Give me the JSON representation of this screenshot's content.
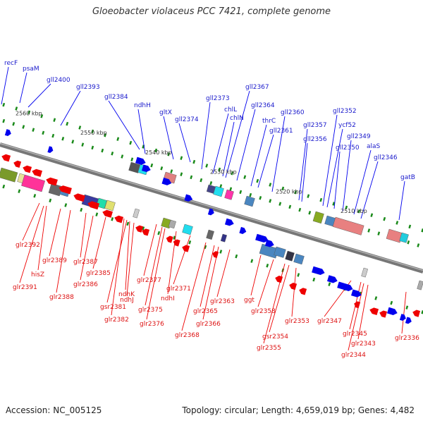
{
  "title": "Gloeobacter violaceus PCC 7421, complete genome",
  "footer": {
    "accession": "Accession: NC_005125",
    "topology": "Topology: circular; Length: 4,659,019 bp; Genes: 4,482"
  },
  "colors": {
    "forward": "#0000ee",
    "reverse": "#ee0000",
    "backbone": "#777777",
    "tick_dots": "#1a8a1a"
  },
  "scale_ticks": [
    "2560 kbp",
    "2550 kbp",
    "2540 kbp",
    "2530 kbp",
    "2520 kbp",
    "2510 kbp"
  ],
  "forward_labels": [
    "recF",
    "psaM",
    "gll2400",
    "gll2393",
    "gll2384",
    "ndhH",
    "gltX",
    "gll2374",
    "gll2373",
    "chlL",
    "chlN",
    "gll2367",
    "gll2364",
    "thrC",
    "gll2361",
    "gll2360",
    "gll2357",
    "gll2356",
    "gll2352",
    "ycf52",
    "gll2350",
    "gll2349",
    "alaS",
    "gll2346",
    "gatB"
  ],
  "reverse_labels": [
    "glr2392",
    "hisZ",
    "glr2391",
    "glr2389",
    "glr2388",
    "glr2387",
    "glr2386",
    "glr2385",
    "gsr2381",
    "ndhJ",
    "ndhK",
    "glr2382",
    "glr2377",
    "glr2375",
    "glr2376",
    "ndhI",
    "glr2371",
    "glr2368",
    "glr2366",
    "glr2365",
    "glr2363",
    "ggt",
    "glr2358",
    "gsr2354",
    "glr2355",
    "glr2353",
    "glr2347",
    "glr2345",
    "glr2343",
    "glr2344",
    "glr2336"
  ]
}
